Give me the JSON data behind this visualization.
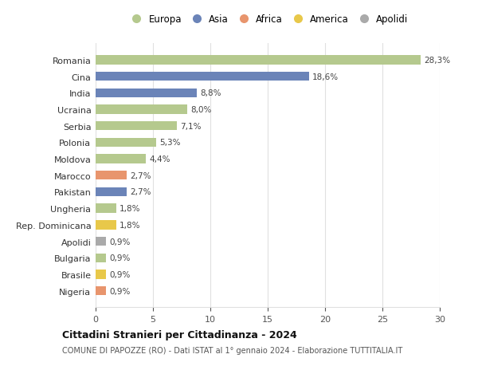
{
  "countries": [
    "Romania",
    "Cina",
    "India",
    "Ucraina",
    "Serbia",
    "Polonia",
    "Moldova",
    "Marocco",
    "Pakistan",
    "Ungheria",
    "Rep. Dominicana",
    "Apolidi",
    "Bulgaria",
    "Brasile",
    "Nigeria"
  ],
  "values": [
    28.3,
    18.6,
    8.8,
    8.0,
    7.1,
    5.3,
    4.4,
    2.7,
    2.7,
    1.8,
    1.8,
    0.9,
    0.9,
    0.9,
    0.9
  ],
  "labels": [
    "28,3%",
    "18,6%",
    "8,8%",
    "8,0%",
    "7,1%",
    "5,3%",
    "4,4%",
    "2,7%",
    "2,7%",
    "1,8%",
    "1,8%",
    "0,9%",
    "0,9%",
    "0,9%",
    "0,9%"
  ],
  "colors": [
    "#b5c98e",
    "#6b84b8",
    "#6b84b8",
    "#b5c98e",
    "#b5c98e",
    "#b5c98e",
    "#b5c98e",
    "#e8956d",
    "#6b84b8",
    "#b5c98e",
    "#e8c84a",
    "#aaaaaa",
    "#b5c98e",
    "#e8c84a",
    "#e8956d"
  ],
  "legend_labels": [
    "Europa",
    "Asia",
    "Africa",
    "America",
    "Apolidi"
  ],
  "legend_colors": [
    "#b5c98e",
    "#6b84b8",
    "#e8956d",
    "#e8c84a",
    "#aaaaaa"
  ],
  "title": "Cittadini Stranieri per Cittadinanza - 2024",
  "subtitle": "COMUNE DI PAPOZZE (RO) - Dati ISTAT al 1° gennaio 2024 - Elaborazione TUTTITALIA.IT",
  "xlim": [
    0,
    30
  ],
  "xticks": [
    0,
    5,
    10,
    15,
    20,
    25,
    30
  ],
  "background_color": "#ffffff",
  "plot_bg_color": "#ffffff",
  "grid_color": "#e0e0e0",
  "bar_height": 0.55
}
